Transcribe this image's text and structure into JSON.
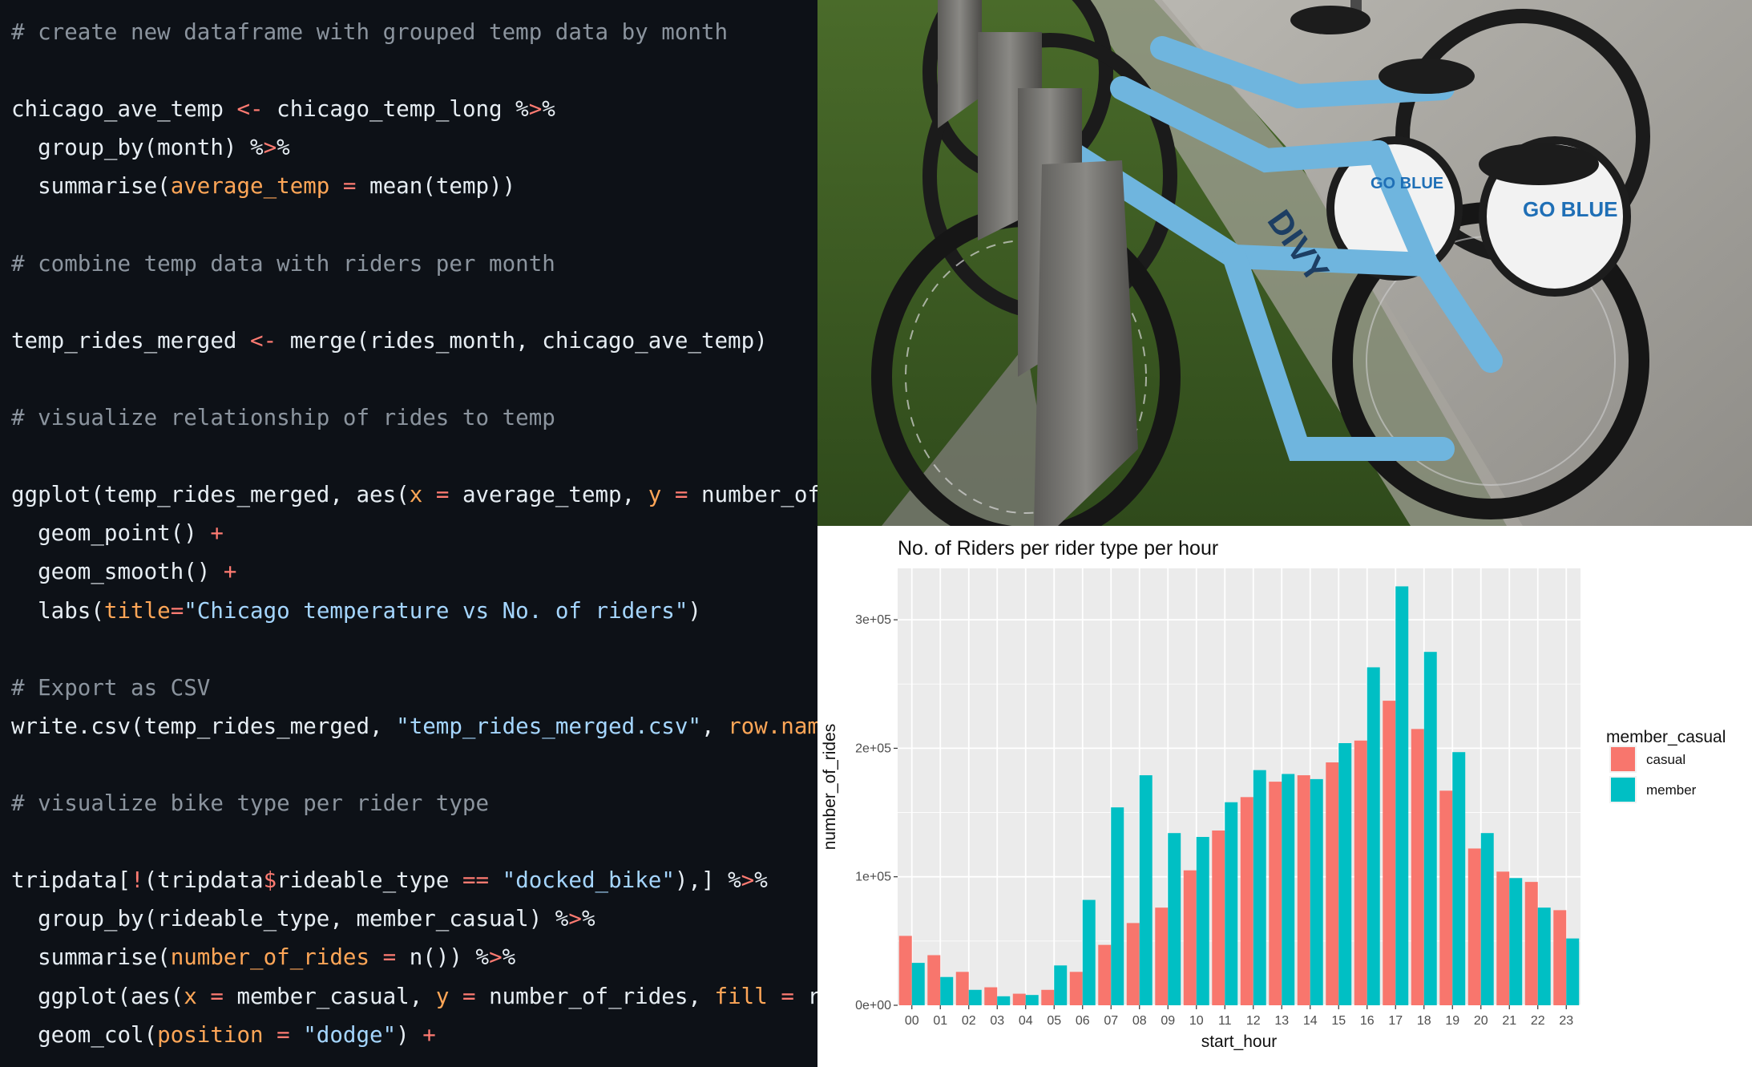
{
  "code": {
    "lines": [
      [
        {
          "t": "# create new dataframe with grouped temp data by month",
          "c": "comment"
        }
      ],
      [],
      [
        {
          "t": "chicago_ave_temp ",
          "c": "plain"
        },
        {
          "t": "<-",
          "c": "op"
        },
        {
          "t": " chicago_temp_long %",
          "c": "plain"
        },
        {
          "t": ">",
          "c": "op"
        },
        {
          "t": "%",
          "c": "plain"
        }
      ],
      [
        {
          "t": "  group_by(month) %",
          "c": "plain"
        },
        {
          "t": ">",
          "c": "op"
        },
        {
          "t": "%",
          "c": "plain"
        }
      ],
      [
        {
          "t": "  summarise(",
          "c": "plain"
        },
        {
          "t": "average_temp",
          "c": "arg"
        },
        {
          "t": " = ",
          "c": "op"
        },
        {
          "t": "mean(temp))",
          "c": "plain"
        }
      ],
      [],
      [
        {
          "t": "# combine temp data with riders per month",
          "c": "comment"
        }
      ],
      [],
      [
        {
          "t": "temp_rides_merged ",
          "c": "plain"
        },
        {
          "t": "<-",
          "c": "op"
        },
        {
          "t": " merge(rides_month, chicago_ave_temp)",
          "c": "plain"
        }
      ],
      [],
      [
        {
          "t": "# visualize relationship of rides to temp",
          "c": "comment"
        }
      ],
      [],
      [
        {
          "t": "ggplot(temp_rides_merged, aes(",
          "c": "plain"
        },
        {
          "t": "x",
          "c": "arg"
        },
        {
          "t": " = ",
          "c": "op"
        },
        {
          "t": "average_temp, ",
          "c": "plain"
        },
        {
          "t": "y",
          "c": "arg"
        },
        {
          "t": " = ",
          "c": "op"
        },
        {
          "t": "number_of_ri",
          "c": "plain"
        }
      ],
      [
        {
          "t": "  geom_point() ",
          "c": "plain"
        },
        {
          "t": "+",
          "c": "op"
        }
      ],
      [
        {
          "t": "  geom_smooth() ",
          "c": "plain"
        },
        {
          "t": "+",
          "c": "op"
        }
      ],
      [
        {
          "t": "  labs(",
          "c": "plain"
        },
        {
          "t": "title",
          "c": "arg"
        },
        {
          "t": "=",
          "c": "op"
        },
        {
          "t": "\"Chicago temperature vs No. of riders\"",
          "c": "str"
        },
        {
          "t": ")",
          "c": "plain"
        }
      ],
      [],
      [
        {
          "t": "# Export as CSV",
          "c": "comment"
        }
      ],
      [
        {
          "t": "write.csv(temp_rides_merged, ",
          "c": "plain"
        },
        {
          "t": "\"temp_rides_merged.csv\"",
          "c": "str"
        },
        {
          "t": ", ",
          "c": "plain"
        },
        {
          "t": "row.names",
          "c": "arg"
        }
      ],
      [],
      [
        {
          "t": "# visualize bike type per rider type",
          "c": "comment"
        }
      ],
      [],
      [
        {
          "t": "tripdata[",
          "c": "plain"
        },
        {
          "t": "!",
          "c": "op"
        },
        {
          "t": "(tripdata",
          "c": "plain"
        },
        {
          "t": "$",
          "c": "op"
        },
        {
          "t": "rideable_type ",
          "c": "plain"
        },
        {
          "t": "==",
          "c": "op"
        },
        {
          "t": " ",
          "c": "plain"
        },
        {
          "t": "\"docked_bike\"",
          "c": "str"
        },
        {
          "t": "),] %",
          "c": "plain"
        },
        {
          "t": ">",
          "c": "op"
        },
        {
          "t": "%",
          "c": "plain"
        }
      ],
      [
        {
          "t": "  group_by(rideable_type, member_casual) %",
          "c": "plain"
        },
        {
          "t": ">",
          "c": "op"
        },
        {
          "t": "%",
          "c": "plain"
        }
      ],
      [
        {
          "t": "  summarise(",
          "c": "plain"
        },
        {
          "t": "number_of_rides",
          "c": "arg"
        },
        {
          "t": " = ",
          "c": "op"
        },
        {
          "t": "n()) %",
          "c": "plain"
        },
        {
          "t": ">",
          "c": "op"
        },
        {
          "t": "%",
          "c": "plain"
        }
      ],
      [
        {
          "t": "  ggplot(aes(",
          "c": "plain"
        },
        {
          "t": "x",
          "c": "arg"
        },
        {
          "t": " = ",
          "c": "op"
        },
        {
          "t": "member_casual, ",
          "c": "plain"
        },
        {
          "t": "y",
          "c": "arg"
        },
        {
          "t": " = ",
          "c": "op"
        },
        {
          "t": "number_of_rides, ",
          "c": "plain"
        },
        {
          "t": "fill",
          "c": "arg"
        },
        {
          "t": " = ",
          "c": "op"
        },
        {
          "t": "ride",
          "c": "plain"
        }
      ],
      [
        {
          "t": "  geom_col(",
          "c": "plain"
        },
        {
          "t": "position",
          "c": "arg"
        },
        {
          "t": " = ",
          "c": "op"
        },
        {
          "t": "\"dodge\"",
          "c": "str"
        },
        {
          "t": ") ",
          "c": "plain"
        },
        {
          "t": "+",
          "c": "op"
        }
      ]
    ]
  },
  "photo": {
    "sign_text": "DIVY",
    "tire_text": "GO BLUE"
  },
  "chart_data": {
    "type": "bar",
    "title": "No. of Riders per rider type per hour",
    "xlabel": "start_hour",
    "ylabel": "number_of_rides",
    "categories": [
      "00",
      "01",
      "02",
      "03",
      "04",
      "05",
      "06",
      "07",
      "08",
      "09",
      "10",
      "11",
      "12",
      "13",
      "14",
      "15",
      "16",
      "17",
      "18",
      "19",
      "20",
      "21",
      "22",
      "23"
    ],
    "series": [
      {
        "name": "casual",
        "color": "#f8766d",
        "values": [
          54000,
          39000,
          26000,
          14000,
          9000,
          12000,
          26000,
          47000,
          64000,
          76000,
          105000,
          136000,
          162000,
          174000,
          179000,
          189000,
          206000,
          237000,
          215000,
          167000,
          122000,
          104000,
          96000,
          74000
        ]
      },
      {
        "name": "member",
        "color": "#00bfc4",
        "values": [
          33000,
          22000,
          12000,
          7000,
          8000,
          31000,
          82000,
          154000,
          179000,
          134000,
          131000,
          158000,
          183000,
          180000,
          176000,
          204000,
          263000,
          326000,
          275000,
          197000,
          134000,
          99000,
          76000,
          52000
        ]
      }
    ],
    "ylim": [
      0,
      340000
    ],
    "yticks": [
      {
        "value": 0,
        "label": "0e+00"
      },
      {
        "value": 100000,
        "label": "1e+05"
      },
      {
        "value": 200000,
        "label": "2e+05"
      },
      {
        "value": 300000,
        "label": "3e+05"
      }
    ],
    "legend": {
      "title": "member_casual",
      "position": "right"
    },
    "grid": true
  }
}
